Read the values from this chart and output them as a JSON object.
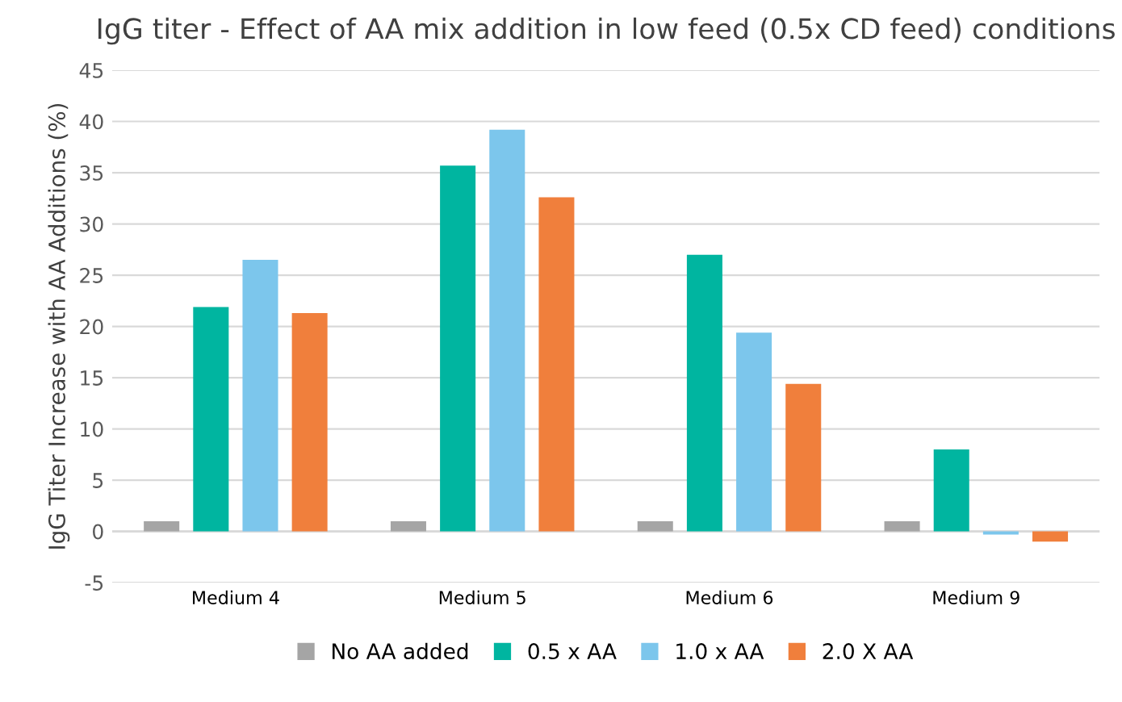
{
  "chart_data": {
    "type": "bar",
    "title": "IgG titer - Effect of AA mix addition in low feed (0.5x CD feed) conditions",
    "ylabel": "IgG Titer Increase with AA Additions (%)",
    "categories": [
      "Medium 4",
      "Medium 5",
      "Medium 6",
      "Medium 9"
    ],
    "series": [
      {
        "name": "No AA added",
        "color": "#a5a5a5",
        "values": [
          1,
          1,
          1,
          1
        ]
      },
      {
        "name": "0.5 x AA",
        "color": "#00b5a0",
        "values": [
          21.9,
          35.7,
          27,
          8
        ]
      },
      {
        "name": "1.0 x AA",
        "color": "#7cc6ec",
        "values": [
          26.5,
          39.2,
          19.4,
          -0.3
        ]
      },
      {
        "name": "2.0 X AA",
        "color": "#f07f3c",
        "values": [
          21.3,
          32.6,
          14.4,
          -1
        ]
      }
    ],
    "ylim": [
      -5,
      45
    ],
    "yticks": [
      -5,
      0,
      5,
      10,
      15,
      20,
      25,
      30,
      35,
      40,
      45
    ],
    "grid": "y",
    "legend": "bottom"
  }
}
